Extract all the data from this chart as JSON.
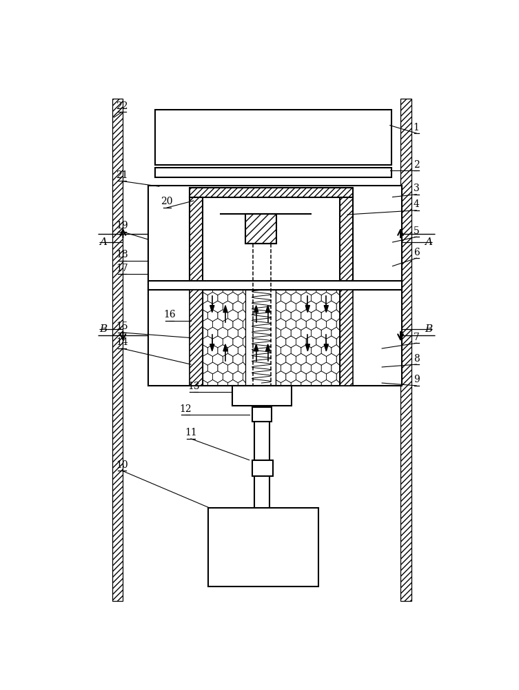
{
  "fig_width": 7.53,
  "fig_height": 10.0,
  "dpi": 100,
  "bg_color": "#ffffff",
  "labels_data": [
    [
      "1",
      660,
      95,
      610,
      80
    ],
    [
      "2",
      660,
      165,
      610,
      165
    ],
    [
      "3",
      660,
      210,
      615,
      215
    ],
    [
      "4",
      660,
      240,
      530,
      248
    ],
    [
      "5",
      660,
      290,
      615,
      300
    ],
    [
      "6",
      660,
      330,
      615,
      345
    ],
    [
      "7",
      660,
      490,
      595,
      500
    ],
    [
      "8",
      660,
      530,
      595,
      535
    ],
    [
      "9",
      660,
      570,
      595,
      565
    ],
    [
      "10",
      105,
      730,
      270,
      800
    ],
    [
      "11",
      235,
      670,
      345,
      710
    ],
    [
      "12",
      225,
      625,
      345,
      625
    ],
    [
      "13",
      240,
      582,
      310,
      582
    ],
    [
      "14",
      105,
      500,
      235,
      530
    ],
    [
      "15",
      105,
      470,
      235,
      480
    ],
    [
      "16",
      195,
      448,
      235,
      448
    ],
    [
      "17",
      105,
      360,
      155,
      360
    ],
    [
      "18",
      105,
      335,
      155,
      335
    ],
    [
      "19",
      105,
      280,
      155,
      295
    ],
    [
      "20",
      190,
      235,
      240,
      222
    ],
    [
      "21",
      105,
      185,
      175,
      195
    ],
    [
      "22",
      105,
      55,
      90,
      65
    ]
  ]
}
